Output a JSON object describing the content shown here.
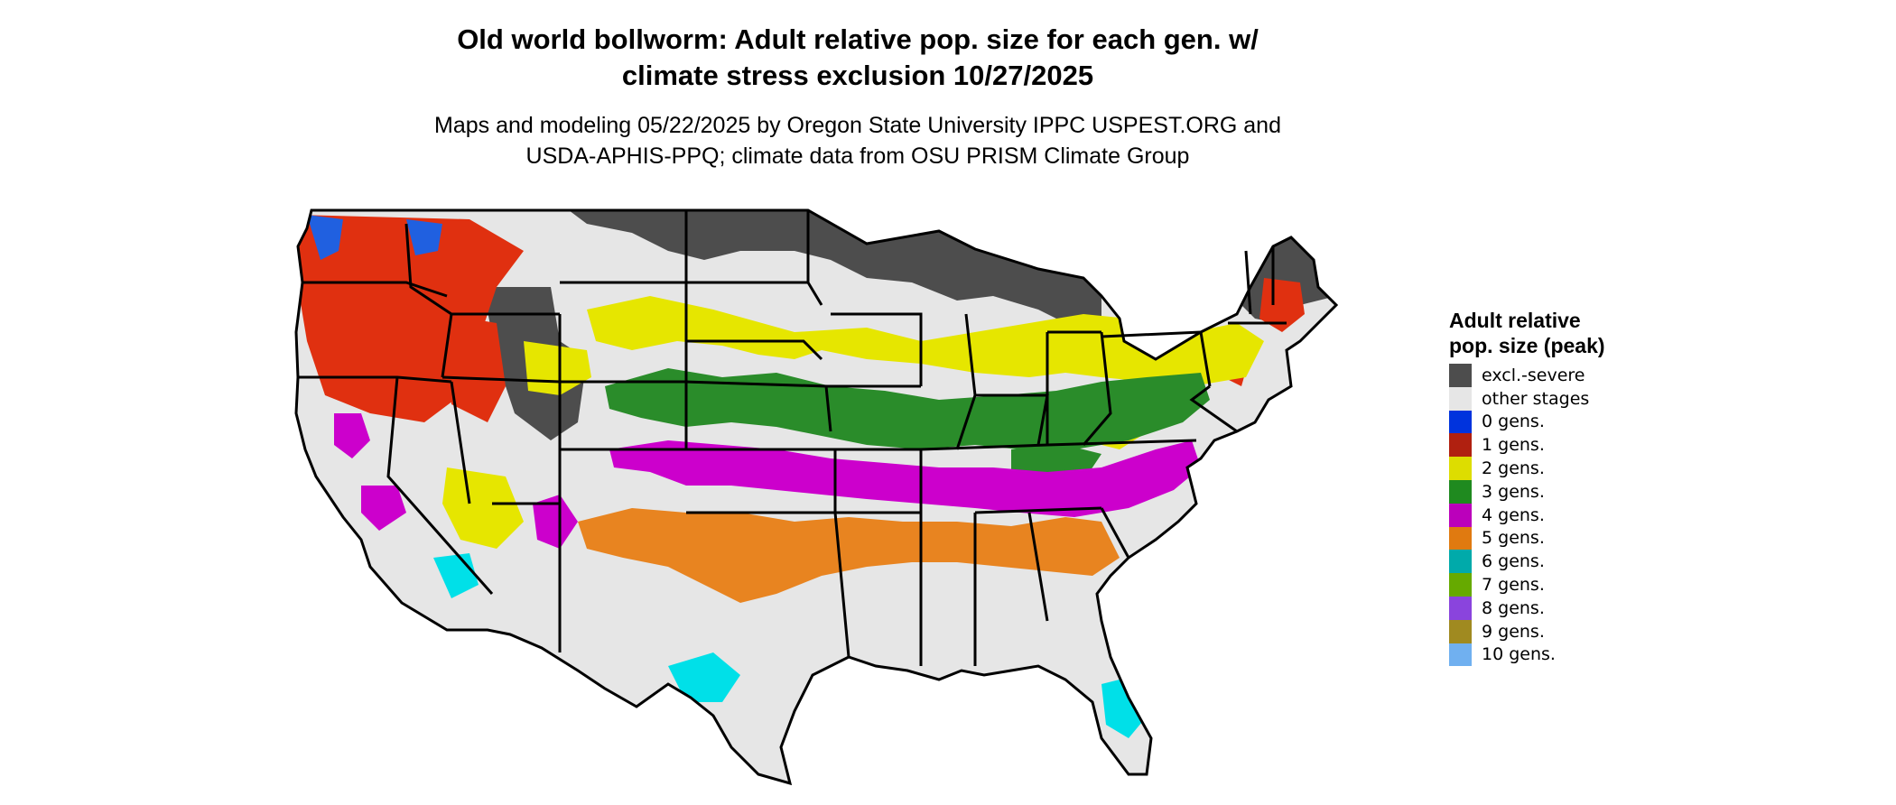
{
  "title_line1": "Old world bollworm: Adult relative pop. size for each gen. w/",
  "title_line2": "climate stress exclusion 10/27/2025",
  "subtitle_line1": "Maps and modeling 05/22/2025 by Oregon State University IPPC USPEST.ORG and",
  "subtitle_line2": "USDA-APHIS-PPQ; climate data from OSU PRISM Climate Group",
  "legend": {
    "title": "Adult relative pop. size (peak)",
    "items": [
      {
        "label": "excl.-severe",
        "color": "#4d4d4d"
      },
      {
        "label": "other stages",
        "color": "#e6e6e6"
      },
      {
        "label": "0 gens.",
        "color": "#0033dd"
      },
      {
        "label": "1 gens.",
        "color": "#b02010"
      },
      {
        "label": "2 gens.",
        "color": "#dddd00"
      },
      {
        "label": "3 gens.",
        "color": "#1f8a1f"
      },
      {
        "label": "4 gens.",
        "color": "#bb00bb"
      },
      {
        "label": "5 gens.",
        "color": "#e07a10"
      },
      {
        "label": "6 gens.",
        "color": "#00aaaa"
      },
      {
        "label": "7 gens.",
        "color": "#66aa00"
      },
      {
        "label": "8 gens.",
        "color": "#8a44dd"
      },
      {
        "label": "9 gens.",
        "color": "#a08a20"
      },
      {
        "label": "10 gens.",
        "color": "#70b0f0"
      }
    ]
  },
  "map_colors": {
    "excl_severe": "#4d4d4d",
    "other_stages": "#e6e6e6",
    "gen1": "#e03010",
    "gen2": "#e6e600",
    "gen3": "#2a8c2a",
    "gen4": "#cc00cc",
    "gen5": "#e88420",
    "gen6": "#00e0e8",
    "gen0": "#2060e0"
  }
}
